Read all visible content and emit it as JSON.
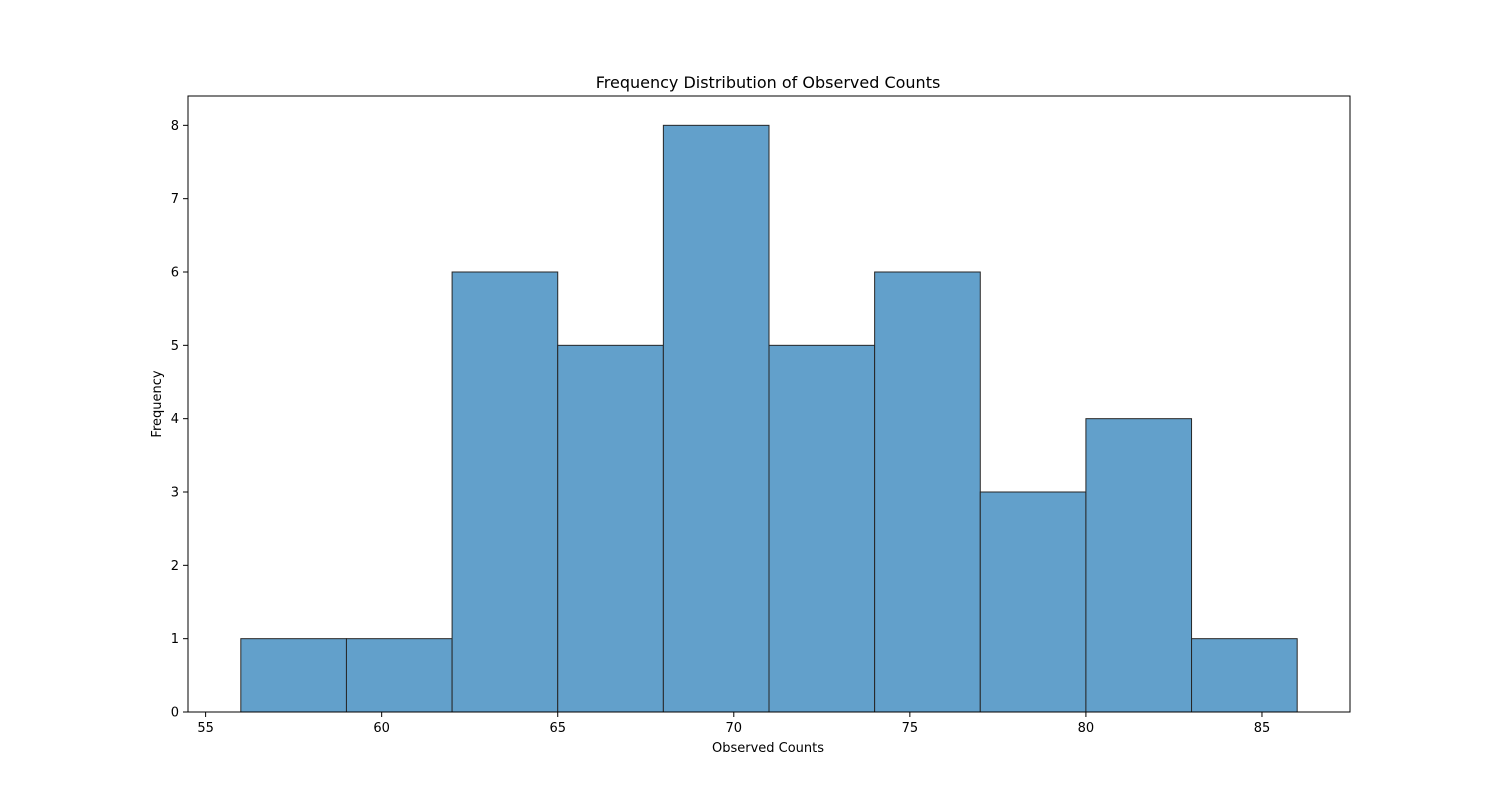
{
  "chart_data": {
    "type": "bar",
    "title": "Frequency Distribution of Observed Counts",
    "xlabel": "Observed Counts",
    "ylabel": "Frequency",
    "bins": [
      {
        "start": 56,
        "end": 59,
        "count": 1
      },
      {
        "start": 59,
        "end": 62,
        "count": 1
      },
      {
        "start": 62,
        "end": 65,
        "count": 6
      },
      {
        "start": 65,
        "end": 68,
        "count": 5
      },
      {
        "start": 68,
        "end": 71,
        "count": 8
      },
      {
        "start": 71,
        "end": 74,
        "count": 5
      },
      {
        "start": 74,
        "end": 77,
        "count": 6
      },
      {
        "start": 77,
        "end": 80,
        "count": 3
      },
      {
        "start": 80,
        "end": 83,
        "count": 4
      },
      {
        "start": 83,
        "end": 86,
        "count": 1
      }
    ],
    "xlim": [
      54.5,
      87.5
    ],
    "ylim": [
      0,
      8.4
    ],
    "xticks": [
      55,
      60,
      65,
      70,
      75,
      80,
      85
    ],
    "yticks": [
      0,
      1,
      2,
      3,
      4,
      5,
      6,
      7,
      8
    ],
    "bar_color": "#62a0cb",
    "edge_color": "#262626",
    "grid": false,
    "legend": "none"
  }
}
